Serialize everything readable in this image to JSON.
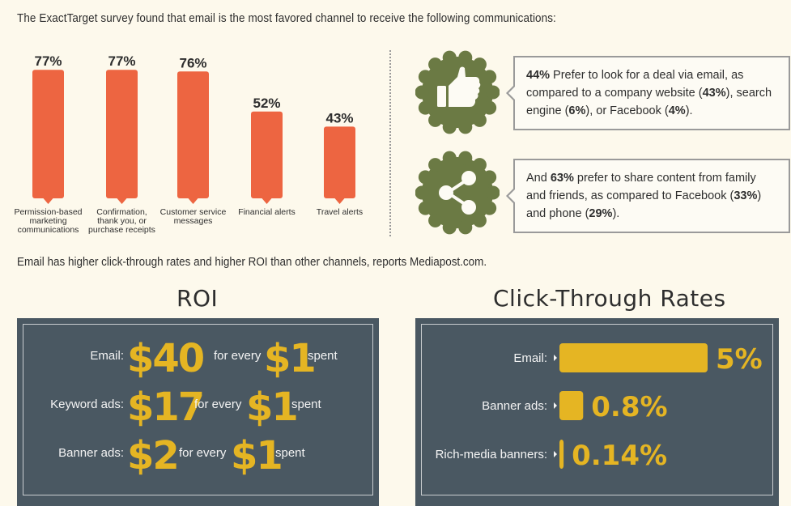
{
  "intro_text": "The ExactTarget survey found that email is the most favored channel to receive the following communications:",
  "colors": {
    "bar": "#ed6541",
    "badge": "#6b7a44",
    "panel": "#4a5862",
    "gold": "#e5b523"
  },
  "chart_data": [
    {
      "type": "bar",
      "categories": [
        "Permission-based marketing communications",
        "Confirmation, thank you, or purchase receipts",
        "Customer service messages",
        "Financial alerts",
        "Travel alerts"
      ],
      "values": [
        77,
        77,
        76,
        52,
        43
      ],
      "value_labels": [
        "77%",
        "77%",
        "76%",
        "52%",
        "43%"
      ],
      "ylim": [
        0,
        80
      ],
      "grid": false,
      "title": "",
      "xlabel": "",
      "ylabel": ""
    },
    {
      "type": "bar",
      "orientation": "horizontal",
      "title": "Click-Through Rates",
      "categories": [
        "Email:",
        "Banner ads:",
        "Rich-media banners:"
      ],
      "values": [
        5,
        0.8,
        0.14
      ],
      "value_labels": [
        "5%",
        "0.8%",
        "0.14%"
      ],
      "unit": "%",
      "xlim": [
        0,
        5
      ],
      "grid": false
    }
  ],
  "callouts": [
    {
      "icon": "thumbs-up-icon",
      "lines": [
        [
          {
            "t": "44%",
            "b": true
          },
          {
            "t": " Prefer to look for a deal via email, as"
          }
        ],
        [
          {
            "t": "compared to a company website ("
          },
          {
            "t": "43%",
            "b": true
          },
          {
            "t": "), search"
          }
        ],
        [
          {
            "t": "engine ("
          },
          {
            "t": "6%",
            "b": true
          },
          {
            "t": "), or Facebook ("
          },
          {
            "t": "4%",
            "b": true
          },
          {
            "t": ")."
          }
        ]
      ]
    },
    {
      "icon": "share-icon",
      "lines": [
        [
          {
            "t": "And "
          },
          {
            "t": "63%",
            "b": true
          },
          {
            "t": " prefer to share content from family"
          }
        ],
        [
          {
            "t": "and friends, as compared to Facebook ("
          },
          {
            "t": "33%",
            "b": true
          },
          {
            "t": ")"
          }
        ],
        [
          {
            "t": "and phone ("
          },
          {
            "t": "29%",
            "b": true
          },
          {
            "t": ")."
          }
        ]
      ]
    }
  ],
  "mid_text": "Email has higher click-through rates and higher ROI than other channels, reports Mediapost.com.",
  "roi": {
    "title": "ROI",
    "rows": [
      {
        "label": "Email:",
        "amount": "$40",
        "mid": "for every",
        "unit": "$1",
        "end": "spent"
      },
      {
        "label": "Keyword ads:",
        "amount": "$17",
        "mid": "for every",
        "unit": "$1",
        "end": "spent"
      },
      {
        "label": "Banner ads:",
        "amount": "$2",
        "mid": "for every",
        "unit": "$1",
        "end": "spent"
      }
    ]
  },
  "ctr_title": "Click-Through Rates"
}
